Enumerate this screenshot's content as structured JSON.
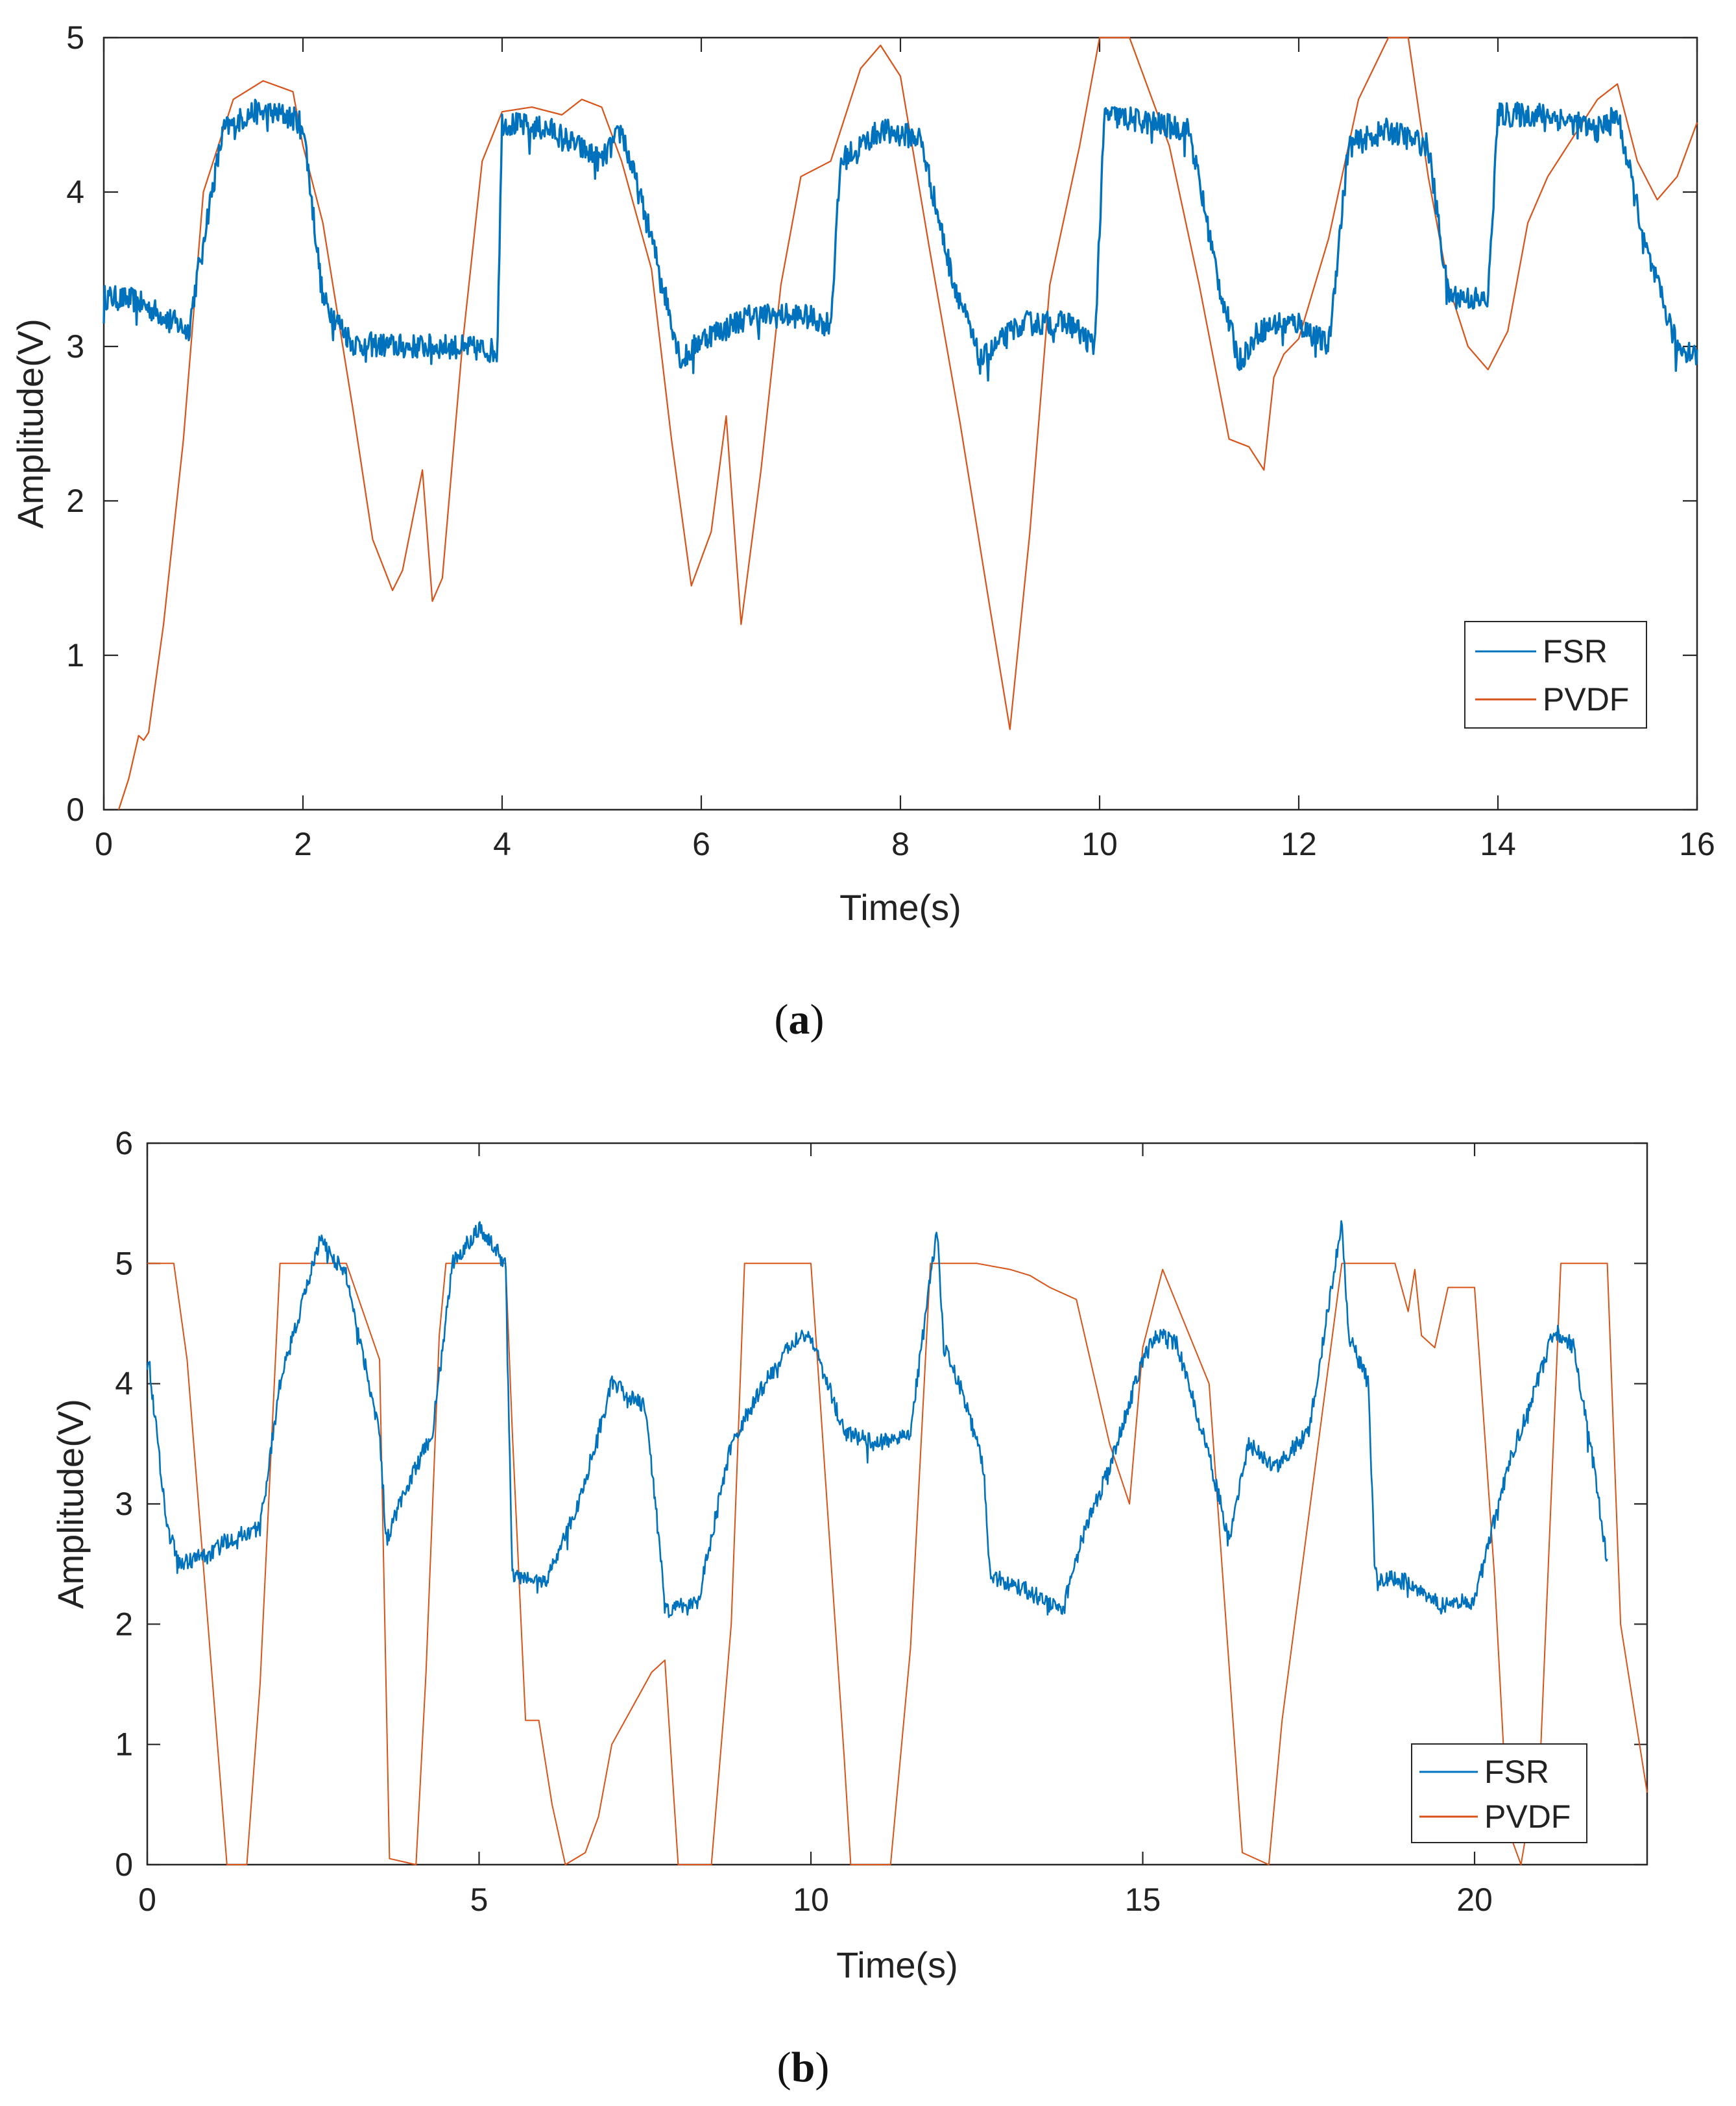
{
  "chart_data": [
    {
      "id": "a",
      "type": "line",
      "caption": "a",
      "xlabel": "Time(s)",
      "ylabel": "Amplitude(V)",
      "xlim": [
        0,
        16
      ],
      "ylim": [
        0,
        5
      ],
      "xticks": [
        0,
        2,
        4,
        6,
        8,
        10,
        12,
        14,
        16
      ],
      "yticks": [
        0,
        1,
        2,
        3,
        4,
        5
      ],
      "grid": false,
      "legend_position": "bottom-right",
      "series": [
        {
          "name": "FSR",
          "color": "#0072BD",
          "style": "noisy",
          "x": [
            0,
            0.3,
            0.6,
            0.85,
            1.0,
            1.2,
            1.5,
            1.8,
            2.0,
            2.2,
            2.5,
            3.0,
            3.5,
            3.95,
            4.0,
            4.5,
            5.0,
            5.2,
            5.5,
            5.8,
            6.0,
            6.5,
            7.0,
            7.3,
            7.4,
            7.8,
            8.2,
            8.5,
            8.8,
            9.2,
            9.7,
            9.95,
            10.05,
            10.5,
            10.9,
            11.2,
            11.4,
            11.6,
            11.8,
            12.0,
            12.3,
            12.5,
            12.9,
            13.3,
            13.5,
            13.9,
            14.0,
            14.5,
            15.0,
            15.2,
            15.5,
            15.8,
            16.0
          ],
          "y": [
            3.32,
            3.3,
            3.2,
            3.1,
            3.7,
            4.4,
            4.52,
            4.5,
            4.45,
            3.3,
            3.02,
            3.0,
            3.0,
            2.97,
            4.45,
            4.4,
            4.2,
            4.4,
            3.7,
            2.9,
            3.05,
            3.2,
            3.2,
            3.15,
            4.2,
            4.4,
            4.35,
            3.5,
            2.9,
            3.15,
            3.15,
            3.0,
            4.5,
            4.45,
            4.4,
            3.4,
            2.9,
            3.1,
            3.15,
            3.15,
            3.0,
            4.3,
            4.4,
            4.3,
            3.33,
            3.3,
            4.5,
            4.5,
            4.4,
            4.5,
            3.6,
            3.0,
            2.95
          ],
          "noise_amp": 0.08
        },
        {
          "name": "PVDF",
          "color": "#D95319",
          "style": "smooth",
          "x": [
            0.15,
            0.25,
            0.35,
            0.4,
            0.45,
            0.6,
            0.8,
            1.0,
            1.3,
            1.6,
            1.9,
            2.0,
            2.2,
            2.5,
            2.7,
            2.9,
            3.0,
            3.2,
            3.3,
            3.4,
            3.6,
            3.8,
            4.0,
            4.3,
            4.6,
            4.8,
            5.0,
            5.2,
            5.5,
            5.7,
            5.9,
            6.1,
            6.25,
            6.4,
            6.6,
            6.8,
            7.0,
            7.3,
            7.6,
            7.8,
            8.0,
            8.3,
            8.6,
            8.9,
            9.1,
            9.3,
            9.5,
            9.8,
            10.0,
            10.3,
            10.7,
            11.0,
            11.3,
            11.5,
            11.65,
            11.75,
            11.85,
            12.0,
            12.3,
            12.6,
            12.9,
            13.1,
            13.3,
            13.5,
            13.7,
            13.9,
            14.1,
            14.3,
            14.5,
            14.8,
            15.0,
            15.2,
            15.4,
            15.6,
            15.8,
            16.0
          ],
          "y": [
            0.0,
            0.2,
            0.48,
            0.45,
            0.5,
            1.2,
            2.4,
            4.0,
            4.6,
            4.72,
            4.65,
            4.3,
            3.8,
            2.6,
            1.75,
            1.42,
            1.55,
            2.2,
            1.35,
            1.5,
            3.0,
            4.2,
            4.52,
            4.55,
            4.5,
            4.6,
            4.55,
            4.2,
            3.5,
            2.4,
            1.45,
            1.8,
            2.55,
            1.2,
            2.2,
            3.4,
            4.1,
            4.2,
            4.8,
            4.95,
            4.75,
            3.6,
            2.5,
            1.3,
            0.52,
            1.8,
            3.4,
            4.3,
            5.0,
            5.0,
            4.3,
            3.4,
            2.4,
            2.35,
            2.2,
            2.8,
            2.95,
            3.05,
            3.7,
            4.6,
            5.0,
            5.0,
            4.1,
            3.4,
            3.0,
            2.85,
            3.1,
            3.8,
            4.1,
            4.4,
            4.6,
            4.7,
            4.2,
            3.95,
            4.1,
            4.45
          ]
        }
      ]
    },
    {
      "id": "b",
      "type": "line",
      "caption": "b",
      "xlabel": "Time(s)",
      "ylabel": "Amplitude(V)",
      "xlim": [
        0,
        22.6
      ],
      "ylim": [
        0,
        6
      ],
      "xticks": [
        0,
        5,
        10,
        15,
        20
      ],
      "yticks": [
        0,
        1,
        2,
        3,
        4,
        5,
        6
      ],
      "grid": false,
      "legend_position": "bottom-right",
      "series": [
        {
          "name": "FSR",
          "color": "#0072BD",
          "style": "noisy",
          "x": [
            0,
            0.3,
            0.5,
            1.0,
            1.2,
            1.7,
            2.0,
            2.3,
            2.6,
            3.0,
            3.5,
            3.6,
            3.8,
            4.3,
            4.6,
            5.0,
            5.4,
            5.5,
            6.0,
            6.5,
            7.0,
            7.5,
            7.7,
            7.8,
            8.3,
            8.8,
            9.3,
            9.8,
            10.0,
            10.5,
            11.0,
            11.5,
            11.9,
            12.0,
            12.3,
            12.6,
            12.7,
            13.2,
            13.8,
            14.0,
            14.5,
            15.0,
            15.2,
            15.5,
            16.0,
            16.3,
            16.6,
            17.0,
            17.5,
            18.0,
            18.1,
            18.4,
            18.5,
            19.0,
            19.5,
            20.0,
            20.5,
            21.0,
            21.2,
            21.5,
            21.8,
            22.0
          ],
          "y": [
            4.3,
            2.8,
            2.5,
            2.6,
            2.7,
            2.8,
            4.0,
            4.6,
            5.2,
            4.9,
            3.6,
            2.7,
            3.0,
            3.6,
            5.0,
            5.3,
            5.0,
            2.4,
            2.35,
            3.0,
            4.0,
            3.8,
            2.8,
            2.1,
            2.2,
            3.5,
            4.0,
            4.4,
            4.4,
            3.6,
            3.5,
            3.6,
            5.3,
            4.3,
            3.9,
            3.3,
            2.4,
            2.3,
            2.1,
            2.6,
            3.3,
            4.2,
            4.4,
            4.35,
            3.4,
            2.7,
            3.5,
            3.3,
            3.6,
            5.35,
            4.4,
            4.0,
            2.4,
            2.35,
            2.15,
            2.2,
            3.3,
            4.1,
            4.45,
            4.3,
            3.3,
            2.5
          ],
          "noise_amp": 0.07
        },
        {
          "name": "PVDF",
          "color": "#D95319",
          "style": "smooth",
          "x": [
            0,
            0.4,
            0.6,
            1.2,
            1.5,
            1.7,
            2.0,
            3.0,
            3.5,
            3.65,
            4.05,
            4.2,
            4.4,
            4.5,
            5.4,
            5.5,
            5.7,
            5.9,
            6.1,
            6.3,
            6.6,
            6.8,
            7.0,
            7.3,
            7.6,
            7.8,
            8.0,
            8.5,
            8.8,
            9.0,
            10.0,
            10.5,
            10.6,
            11.2,
            11.5,
            11.8,
            11.95,
            12.5,
            13.0,
            13.3,
            13.6,
            14.0,
            14.5,
            14.8,
            15.0,
            15.3,
            16.0,
            16.5,
            16.9,
            17.1,
            18.0,
            18.8,
            19.0,
            19.1,
            19.2,
            19.4,
            19.6,
            20.0,
            20.3,
            20.5,
            20.7,
            21.0,
            21.3,
            22.0,
            22.2,
            22.6
          ],
          "y": [
            5.0,
            5.0,
            4.2,
            0.0,
            0.0,
            1.5,
            5.0,
            5.0,
            4.2,
            0.05,
            0.0,
            1.6,
            4.4,
            5.0,
            5.0,
            3.6,
            1.2,
            1.2,
            0.5,
            0.0,
            0.1,
            0.4,
            1.0,
            1.3,
            1.6,
            1.7,
            0.0,
            0.0,
            2.0,
            5.0,
            5.0,
            0.9,
            0.0,
            0.0,
            1.8,
            5.0,
            5.0,
            5.0,
            4.95,
            4.9,
            4.8,
            4.7,
            3.5,
            3.0,
            4.3,
            4.95,
            4.0,
            0.1,
            0.0,
            1.2,
            5.0,
            5.0,
            4.6,
            4.95,
            4.4,
            4.3,
            4.8,
            4.8,
            2.4,
            0.3,
            0.0,
            1.0,
            5.0,
            5.0,
            2.0,
            0.6
          ]
        }
      ]
    }
  ]
}
